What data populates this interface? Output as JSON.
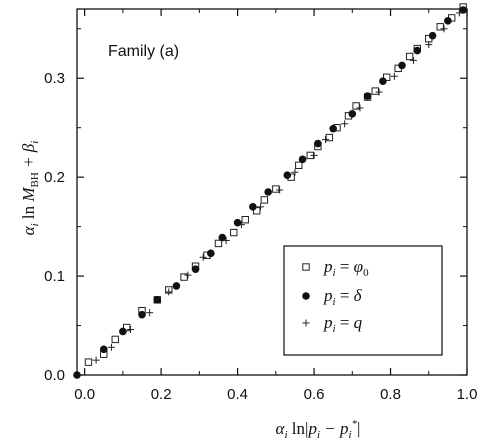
{
  "chart_data": {
    "type": "scatter",
    "annotation": "Family (a)",
    "xlabel": "α_i ln|p_i − p_i*|",
    "ylabel": "α_i ln M_BH + β_i",
    "xlim": [
      -0.02,
      1.0
    ],
    "ylim": [
      0.0,
      0.37
    ],
    "x_ticks": [
      0.0,
      0.2,
      0.4,
      0.6,
      0.8,
      1.0
    ],
    "x_tick_labels": [
      "0.0",
      "0.2",
      "0.4",
      "0.6",
      "0.8",
      "1.0"
    ],
    "y_ticks": [
      0.0,
      0.1,
      0.2,
      0.3
    ],
    "y_tick_labels": [
      "0.0",
      "0.1",
      "0.2",
      "0.3"
    ],
    "grid": false,
    "legend_position": "lower-right",
    "series": [
      {
        "name": "p_i = φ_0",
        "marker": "open-square",
        "points": [
          [
            0.01,
            0.013
          ],
          [
            0.05,
            0.021
          ],
          [
            0.08,
            0.036
          ],
          [
            0.11,
            0.048
          ],
          [
            0.15,
            0.065
          ],
          [
            0.19,
            0.076
          ],
          [
            0.22,
            0.086
          ],
          [
            0.26,
            0.099
          ],
          [
            0.29,
            0.11
          ],
          [
            0.32,
            0.121
          ],
          [
            0.35,
            0.133
          ],
          [
            0.39,
            0.144
          ],
          [
            0.42,
            0.157
          ],
          [
            0.45,
            0.166
          ],
          [
            0.47,
            0.177
          ],
          [
            0.5,
            0.188
          ],
          [
            0.54,
            0.2
          ],
          [
            0.56,
            0.212
          ],
          [
            0.59,
            0.222
          ],
          [
            0.61,
            0.231
          ],
          [
            0.64,
            0.24
          ],
          [
            0.66,
            0.25
          ],
          [
            0.69,
            0.262
          ],
          [
            0.71,
            0.272
          ],
          [
            0.74,
            0.281
          ],
          [
            0.76,
            0.287
          ],
          [
            0.79,
            0.301
          ],
          [
            0.82,
            0.31
          ],
          [
            0.85,
            0.322
          ],
          [
            0.87,
            0.33
          ],
          [
            0.9,
            0.34
          ],
          [
            0.93,
            0.352
          ],
          [
            0.96,
            0.361
          ],
          [
            0.99,
            0.372
          ]
        ]
      },
      {
        "name": "p_i = δ",
        "marker": "filled-circle",
        "points": [
          [
            -0.02,
            0.0
          ],
          [
            0.05,
            0.026
          ],
          [
            0.1,
            0.044
          ],
          [
            0.15,
            0.061
          ],
          [
            0.19,
            0.076
          ],
          [
            0.24,
            0.09
          ],
          [
            0.29,
            0.107
          ],
          [
            0.33,
            0.123
          ],
          [
            0.36,
            0.139
          ],
          [
            0.4,
            0.154
          ],
          [
            0.44,
            0.17
          ],
          [
            0.48,
            0.185
          ],
          [
            0.53,
            0.202
          ],
          [
            0.57,
            0.218
          ],
          [
            0.61,
            0.234
          ],
          [
            0.65,
            0.249
          ],
          [
            0.7,
            0.264
          ],
          [
            0.74,
            0.282
          ],
          [
            0.78,
            0.297
          ],
          [
            0.83,
            0.313
          ],
          [
            0.87,
            0.328
          ],
          [
            0.91,
            0.343
          ],
          [
            0.95,
            0.358
          ],
          [
            0.99,
            0.369
          ]
        ]
      },
      {
        "name": "p_i = q",
        "marker": "plus",
        "points": [
          [
            0.03,
            0.015
          ],
          [
            0.07,
            0.028
          ],
          [
            0.12,
            0.046
          ],
          [
            0.17,
            0.063
          ],
          [
            0.22,
            0.084
          ],
          [
            0.27,
            0.101
          ],
          [
            0.31,
            0.119
          ],
          [
            0.37,
            0.136
          ],
          [
            0.41,
            0.152
          ],
          [
            0.46,
            0.17
          ],
          [
            0.51,
            0.187
          ],
          [
            0.55,
            0.205
          ],
          [
            0.6,
            0.222
          ],
          [
            0.63,
            0.238
          ],
          [
            0.68,
            0.254
          ],
          [
            0.72,
            0.27
          ],
          [
            0.77,
            0.286
          ],
          [
            0.81,
            0.302
          ],
          [
            0.86,
            0.318
          ],
          [
            0.9,
            0.334
          ],
          [
            0.94,
            0.35
          ],
          [
            0.98,
            0.366
          ]
        ]
      }
    ]
  }
}
